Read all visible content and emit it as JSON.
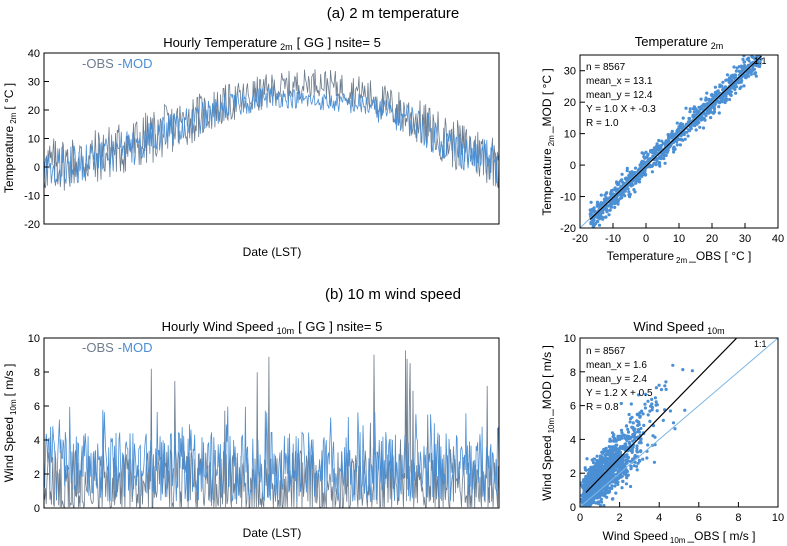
{
  "panels": [
    {
      "heading": "(a) 2 m temperature",
      "timeseries": {
        "title_main": "Hourly Temperature",
        "title_sub": "2m",
        "title_rest": "[ GG ] nsite= 5",
        "ylabel_main": "Temperature",
        "ylabel_sub": "2m",
        "ylabel_rest": "[ °C ]",
        "xlabel": "Date (LST)",
        "legend": [
          "-OBS",
          "-MOD"
        ],
        "yticks": [
          "-20",
          "-10",
          "0",
          "10",
          "20",
          "30",
          "40"
        ]
      },
      "scatter": {
        "title_main": "Temperature",
        "title_sub": "2m",
        "xlabel_main": "Temperature",
        "xlabel_sub": "2m",
        "xlabel_rest": "_OBS [ °C ]",
        "ylabel_main": "Temperature",
        "ylabel_sub": "2m",
        "ylabel_rest": "_MOD [ °C ]",
        "stats": [
          "n = 8567",
          "mean_x = 13.1",
          "mean_y = 12.4",
          "Y = 1.0 X + -0.3",
          "R = 1.0"
        ],
        "ref_label": "1:1",
        "xticks": [
          "-20",
          "-10",
          "0",
          "10",
          "20",
          "30",
          "40"
        ],
        "yticks": [
          "-20",
          "-10",
          "0",
          "10",
          "20",
          "30"
        ]
      }
    },
    {
      "heading": "(b) 10 m wind speed",
      "timeseries": {
        "title_main": "Hourly Wind Speed",
        "title_sub": "10m",
        "title_rest": "[ GG ] nsite= 5",
        "ylabel_main": "Wind Speed",
        "ylabel_sub": "10m",
        "ylabel_rest": "[ m/s ]",
        "xlabel": "Date (LST)",
        "legend": [
          "-OBS",
          "-MOD"
        ],
        "yticks": [
          "0",
          "2",
          "4",
          "6",
          "8",
          "10"
        ]
      },
      "scatter": {
        "title_main": "Wind Speed",
        "title_sub": "10m",
        "xlabel_main": "Wind Speed",
        "xlabel_sub": "10m",
        "xlabel_rest": "_OBS [ m/s ]",
        "ylabel_main": "Wind Speed",
        "ylabel_sub": "10m",
        "ylabel_rest": "_MOD [ m/s ]",
        "stats": [
          "n = 8567",
          "mean_x = 1.6",
          "mean_y = 2.4",
          "Y = 1.2 X + 0.5",
          "R = 0.8"
        ],
        "ref_label": "1:1",
        "xticks": [
          "0",
          "2",
          "4",
          "6",
          "8",
          "10"
        ],
        "yticks": [
          "0",
          "2",
          "4",
          "6",
          "8",
          "10"
        ]
      }
    }
  ],
  "colors": {
    "obs": "#6e7d8e",
    "mod": "#4b8fd4",
    "fit": "#000000",
    "one_to_one": "#7fb8e6"
  },
  "chart_data": [
    {
      "type": "line",
      "title": "Hourly Temperature 2m [ GG ] nsite= 5",
      "xlabel": "Date (LST)",
      "ylabel": "Temperature 2m [ °C ]",
      "ylim": [
        -20,
        40
      ],
      "grid": false,
      "legend": "top-left",
      "x_fraction": [
        0.0,
        0.1,
        0.2,
        0.3,
        0.4,
        0.5,
        0.6,
        0.7,
        0.8,
        0.9,
        1.0
      ],
      "series": [
        {
          "name": "OBS",
          "center": [
            0,
            3,
            8,
            15,
            22,
            27,
            30,
            26,
            18,
            8,
            2
          ],
          "spread": [
            20,
            20,
            20,
            18,
            14,
            12,
            10,
            12,
            16,
            18,
            20
          ]
        },
        {
          "name": "MOD",
          "center": [
            -1,
            2,
            7,
            14,
            21,
            25,
            23,
            22,
            17,
            7,
            1
          ],
          "spread": [
            14,
            14,
            14,
            12,
            10,
            8,
            6,
            8,
            12,
            14,
            14
          ]
        }
      ]
    },
    {
      "type": "scatter",
      "title": "Temperature 2m",
      "xlabel": "Temperature 2m _OBS [ °C ]",
      "ylabel": "Temperature 2m _MOD [ °C ]",
      "xlim": [
        -20,
        40
      ],
      "ylim": [
        -20,
        35
      ],
      "n": 8567,
      "mean_x": 13.1,
      "mean_y": 12.4,
      "fit": {
        "slope": 1.0,
        "intercept": -0.3
      },
      "R": 1.0,
      "x_range": [
        -17,
        35
      ],
      "scatter_width": 3
    },
    {
      "type": "line",
      "title": "Hourly Wind Speed 10m [ GG ] nsite= 5",
      "xlabel": "Date (LST)",
      "ylabel": "Wind Speed 10m [ m/s ]",
      "ylim": [
        0,
        10
      ],
      "grid": false,
      "legend": "top-left",
      "series": [
        {
          "name": "OBS",
          "baseline": 1.3,
          "typical_peak": 3.5,
          "max": 9.8
        },
        {
          "name": "MOD",
          "baseline": 2.2,
          "typical_peak": 4.5,
          "max": 6.0
        }
      ]
    },
    {
      "type": "scatter",
      "title": "Wind Speed 10m",
      "xlabel": "Wind Speed 10m _OBS [ m/s ]",
      "ylabel": "Wind Speed 10m _MOD [ m/s ]",
      "xlim": [
        0,
        10
      ],
      "ylim": [
        0,
        10
      ],
      "n": 8567,
      "mean_x": 1.6,
      "mean_y": 2.4,
      "fit": {
        "slope": 1.2,
        "intercept": 0.5
      },
      "R": 0.8,
      "x_range": [
        0,
        8
      ],
      "scatter_width": 1
    }
  ]
}
